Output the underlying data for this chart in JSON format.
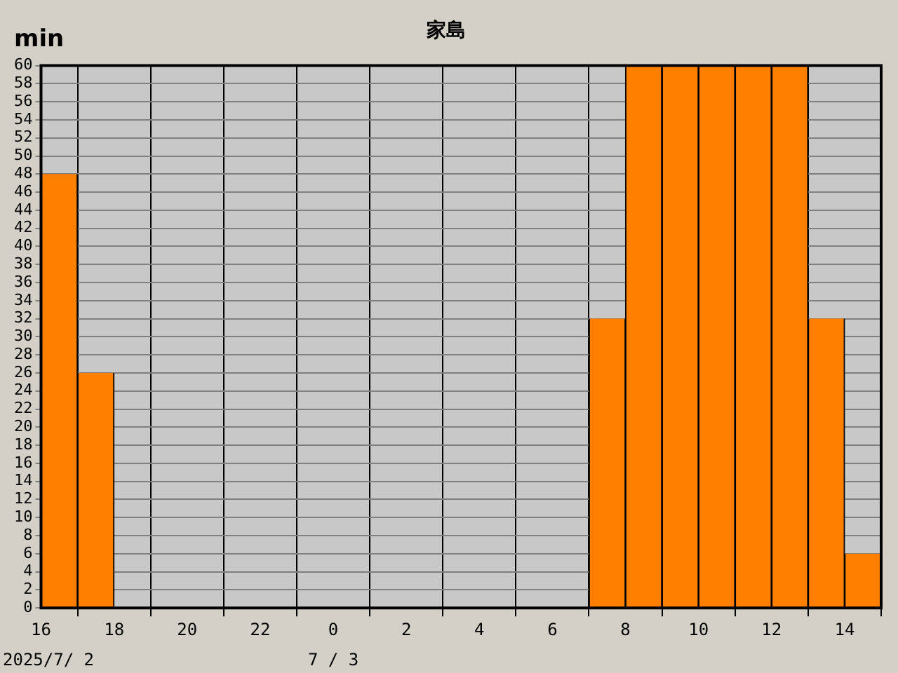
{
  "chart_data": {
    "type": "bar",
    "title": "家島",
    "ylabel": "min",
    "x": [
      "2025-07-02T16:30",
      "2025-07-02T17:30",
      "2025-07-02T18:30",
      "2025-07-02T19:30",
      "2025-07-02T20:30",
      "2025-07-02T21:30",
      "2025-07-02T22:30",
      "2025-07-02T23:30",
      "2025-07-03T00:30",
      "2025-07-03T01:30",
      "2025-07-03T02:30",
      "2025-07-03T03:30",
      "2025-07-03T04:30",
      "2025-07-03T05:30",
      "2025-07-03T06:30",
      "2025-07-03T07:30",
      "2025-07-03T08:30",
      "2025-07-03T09:30",
      "2025-07-03T10:30",
      "2025-07-03T11:30",
      "2025-07-03T12:30",
      "2025-07-03T13:30",
      "2025-07-03T14:30"
    ],
    "values": [
      48,
      26,
      0,
      0,
      0,
      0,
      0,
      0,
      0,
      0,
      0,
      0,
      0,
      0,
      0,
      32,
      60,
      60,
      60,
      60,
      60,
      32,
      6
    ],
    "color": "#ff8000",
    "xlim": [
      "2025-07-02T16:00",
      "2025-07-03T15:00"
    ],
    "xticks": [
      {
        "value": "2025-07-02T16:00",
        "label": "16"
      },
      {
        "value": "2025-07-02T18:00",
        "label": "18"
      },
      {
        "value": "2025-07-02T20:00",
        "label": "20"
      },
      {
        "value": "2025-07-02T22:00",
        "label": "22"
      },
      {
        "value": "2025-07-03T00:00",
        "label": "0"
      },
      {
        "value": "2025-07-03T02:00",
        "label": "2"
      },
      {
        "value": "2025-07-03T04:00",
        "label": "4"
      },
      {
        "value": "2025-07-03T06:00",
        "label": "6"
      },
      {
        "value": "2025-07-03T08:00",
        "label": "8"
      },
      {
        "value": "2025-07-03T10:00",
        "label": "10"
      },
      {
        "value": "2025-07-03T12:00",
        "label": "12"
      },
      {
        "value": "2025-07-03T14:00",
        "label": "14"
      }
    ],
    "ylim": [
      0,
      60
    ],
    "yticks": [
      0,
      2,
      4,
      6,
      8,
      10,
      12,
      14,
      16,
      18,
      20,
      22,
      24,
      26,
      28,
      30,
      32,
      34,
      36,
      38,
      40,
      42,
      44,
      46,
      48,
      50,
      52,
      54,
      56,
      58,
      60
    ],
    "grid": true,
    "annotations": [
      "2025/7/ 2",
      "7 / 3"
    ]
  }
}
